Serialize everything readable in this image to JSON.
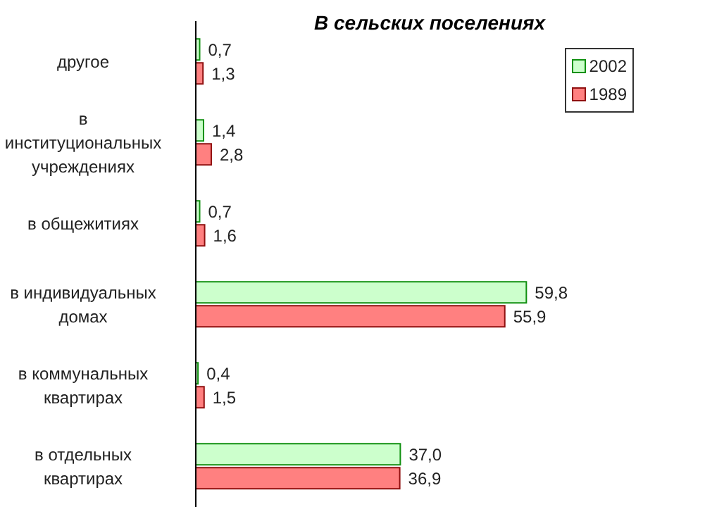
{
  "chart_data": {
    "type": "bar",
    "orientation": "horizontal",
    "title": "В сельских поселениях",
    "categories": [
      "другое",
      "в институциональных учреждениях",
      "в общежитиях",
      "в индивидуальных домах",
      "в коммунальных квартирах",
      "в отдельных квартирах"
    ],
    "series": [
      {
        "name": "2002",
        "color": "#ccffcc",
        "values": [
          0.7,
          1.4,
          0.7,
          59.8,
          0.4,
          37.0
        ],
        "value_labels": [
          "0,7",
          "1,4",
          "0,7",
          "59,8",
          "0,4",
          "37,0"
        ]
      },
      {
        "name": "1989",
        "color": "#ff8080",
        "values": [
          1.3,
          2.8,
          1.6,
          55.9,
          1.5,
          36.9
        ],
        "value_labels": [
          "1,3",
          "2,8",
          "1,6",
          "55,9",
          "1,5",
          "36,9"
        ]
      }
    ],
    "legend": "top right"
  }
}
